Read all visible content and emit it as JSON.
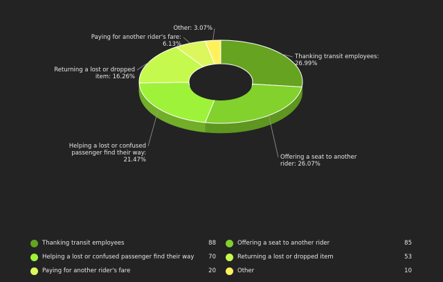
{
  "chart_data": {
    "type": "pie",
    "style": "3d-donut",
    "slices": [
      {
        "label": "Thanking transit employees",
        "value": 88,
        "percent_label": "Thanking transit employees:\n26.99%",
        "color": "#65a320"
      },
      {
        "label": "Offering a seat to another rider",
        "value": 85,
        "percent_label": "Offering a seat to another\nrider: 26.07%",
        "color": "#82d12c"
      },
      {
        "label": "Helping a lost or confused passenger find their way",
        "value": 70,
        "percent_label": "Helping a lost or confused\npassenger find their way:\n21.47%",
        "color": "#9ef23a"
      },
      {
        "label": "Returning a lost or dropped item",
        "value": 53,
        "percent_label": "Returning a lost or dropped\nitem: 16.26%",
        "color": "#c6f94e"
      },
      {
        "label": "Paying for another rider's fare",
        "value": 20,
        "percent_label": "Paying for another rider's fare:\n6.13%",
        "color": "#dcf65e"
      },
      {
        "label": "Other",
        "value": 10,
        "percent_label": "Other: 3.07%",
        "color": "#fff15c"
      }
    ]
  }
}
